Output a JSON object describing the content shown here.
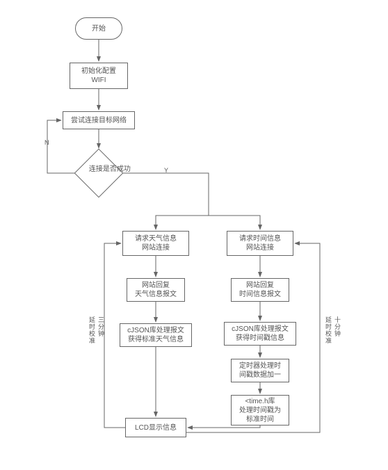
{
  "flow": {
    "type": "flowchart",
    "background_color": "#ffffff",
    "stroke_color": "#666666",
    "text_color": "#555555",
    "font_size": 10,
    "nodes": {
      "start": {
        "label": "开始"
      },
      "init_wifi": {
        "label": "初始化配置\nWIFI"
      },
      "try_connect": {
        "label": "尝试连接目标网络"
      },
      "decision": {
        "label": "连接是否成功"
      },
      "weather_req": {
        "label": "请求天气信息\n网站连接"
      },
      "weather_resp": {
        "label": "网站回复\n天气信息报文"
      },
      "weather_json": {
        "label": "cJSON库处理报文\n获得标准天气信息"
      },
      "time_req": {
        "label": "请求时间信息\n网站连接"
      },
      "time_resp": {
        "label": "网站回复\n时间信息报文"
      },
      "time_json": {
        "label": "cJSON库处理报文\n获得时间戳信息"
      },
      "timer": {
        "label": "定时器处理时\n间戳数据加一"
      },
      "timeh": {
        "label": "<time.h库\n处理时间戳为\n标准时间"
      },
      "lcd": {
        "label": "LCD显示信息"
      }
    },
    "edges": {
      "no": "N",
      "yes": "Y",
      "left_loop": "三分钟\n延时校准",
      "right_loop": "十分钟\n延时校准"
    }
  }
}
